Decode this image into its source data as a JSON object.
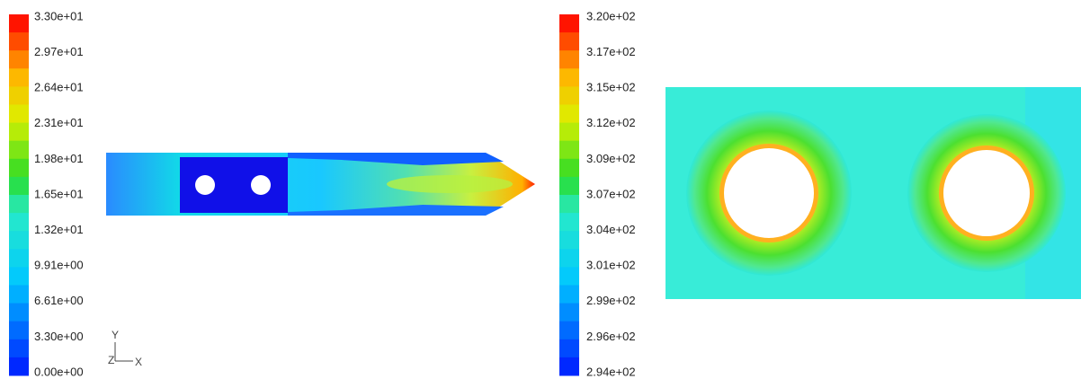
{
  "left_legend": {
    "labels": [
      "3.30e+01",
      "2.97e+01",
      "2.64e+01",
      "2.31e+01",
      "1.98e+01",
      "1.65e+01",
      "1.32e+01",
      "9.91e+00",
      "6.61e+00",
      "3.30e+00",
      "0.00e+00"
    ]
  },
  "axes": {
    "y": "Y",
    "z": "Z",
    "x": "X"
  },
  "right_legend": {
    "labels": [
      "3.20e+02",
      "3.17e+02",
      "3.15e+02",
      "3.12e+02",
      "3.09e+02",
      "3.07e+02",
      "3.04e+02",
      "3.01e+02",
      "2.99e+02",
      "2.96e+02",
      "2.94e+02"
    ]
  }
}
